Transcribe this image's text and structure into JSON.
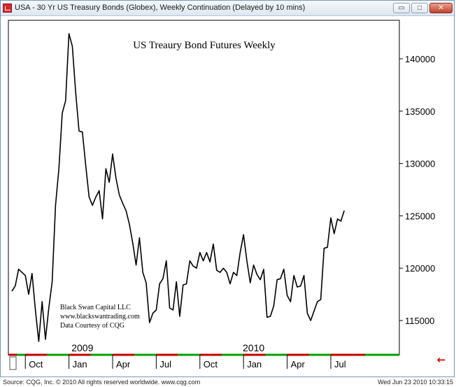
{
  "window": {
    "title": "USA - 30 Yr US Treasury Bonds (Globex), Weekly Continuation (Delayed by 10 mins)",
    "min_glyph": "▭",
    "max_glyph": "□",
    "close_glyph": "✕",
    "icon": "chart-app-icon"
  },
  "footer": {
    "source": "Source: CQG, Inc. © 2010 All rights reserved worldwide. www.cqg.com",
    "timestamp": "Wed Jun 23 2010 10:33:15"
  },
  "scroll_arrow": "←",
  "colors": {
    "line": "#000000",
    "axis_red": "#c00000",
    "axis_green": "#00a000",
    "frame": "#7a96b8",
    "arrow": "#e00000"
  },
  "chart_data": {
    "type": "line",
    "title": "US Treaury Bond Futures Weekly",
    "annotations": [
      "Black Swan Capital LLC",
      "www.blackswantrading.com",
      "Data Courtesy of CQG"
    ],
    "ylim": [
      111000,
      146000
    ],
    "yticks": [
      115000,
      120000,
      125000,
      130000,
      135000,
      140000
    ],
    "ytick_labels": [
      "115000",
      "120000",
      "125000",
      "130000",
      "135000",
      "140000"
    ],
    "x_month_labels": [
      "Oct",
      "Jan",
      "Apr",
      "Jul",
      "Oct",
      "Jan",
      "Apr",
      "Jul"
    ],
    "x_month_index": [
      4,
      17,
      30,
      43,
      56,
      69,
      82,
      95
    ],
    "year_labels": [
      "2009",
      "2010"
    ],
    "year_label_index": [
      21,
      72
    ],
    "x_start": 0,
    "x_end": 111,
    "values": [
      117800,
      118300,
      119900,
      119600,
      119300,
      117500,
      119500,
      116000,
      113000,
      116800,
      113200,
      116200,
      118700,
      126000,
      129500,
      134800,
      136000,
      142400,
      141200,
      136800,
      133100,
      133000,
      129800,
      126800,
      126000,
      126800,
      127400,
      124700,
      129500,
      128200,
      130900,
      128600,
      127000,
      126200,
      125500,
      124200,
      122400,
      120300,
      122900,
      119600,
      118600,
      114800,
      115700,
      116000,
      118500,
      119000,
      120700,
      116200,
      116000,
      118700,
      115400,
      118400,
      118500,
      120700,
      120200,
      120000,
      121500,
      120700,
      121500,
      120600,
      122300,
      119800,
      119600,
      120000,
      119600,
      118500,
      119600,
      119300,
      121500,
      123200,
      120700,
      118600,
      120300,
      119400,
      118900,
      119900,
      115300,
      115400,
      116400,
      118900,
      119000,
      119900,
      117400,
      116800,
      119300,
      118200,
      118300,
      119300,
      115700,
      115000,
      115900,
      116800,
      117000,
      121900,
      122000,
      124800,
      123300,
      124700,
      124500,
      125500
    ]
  }
}
